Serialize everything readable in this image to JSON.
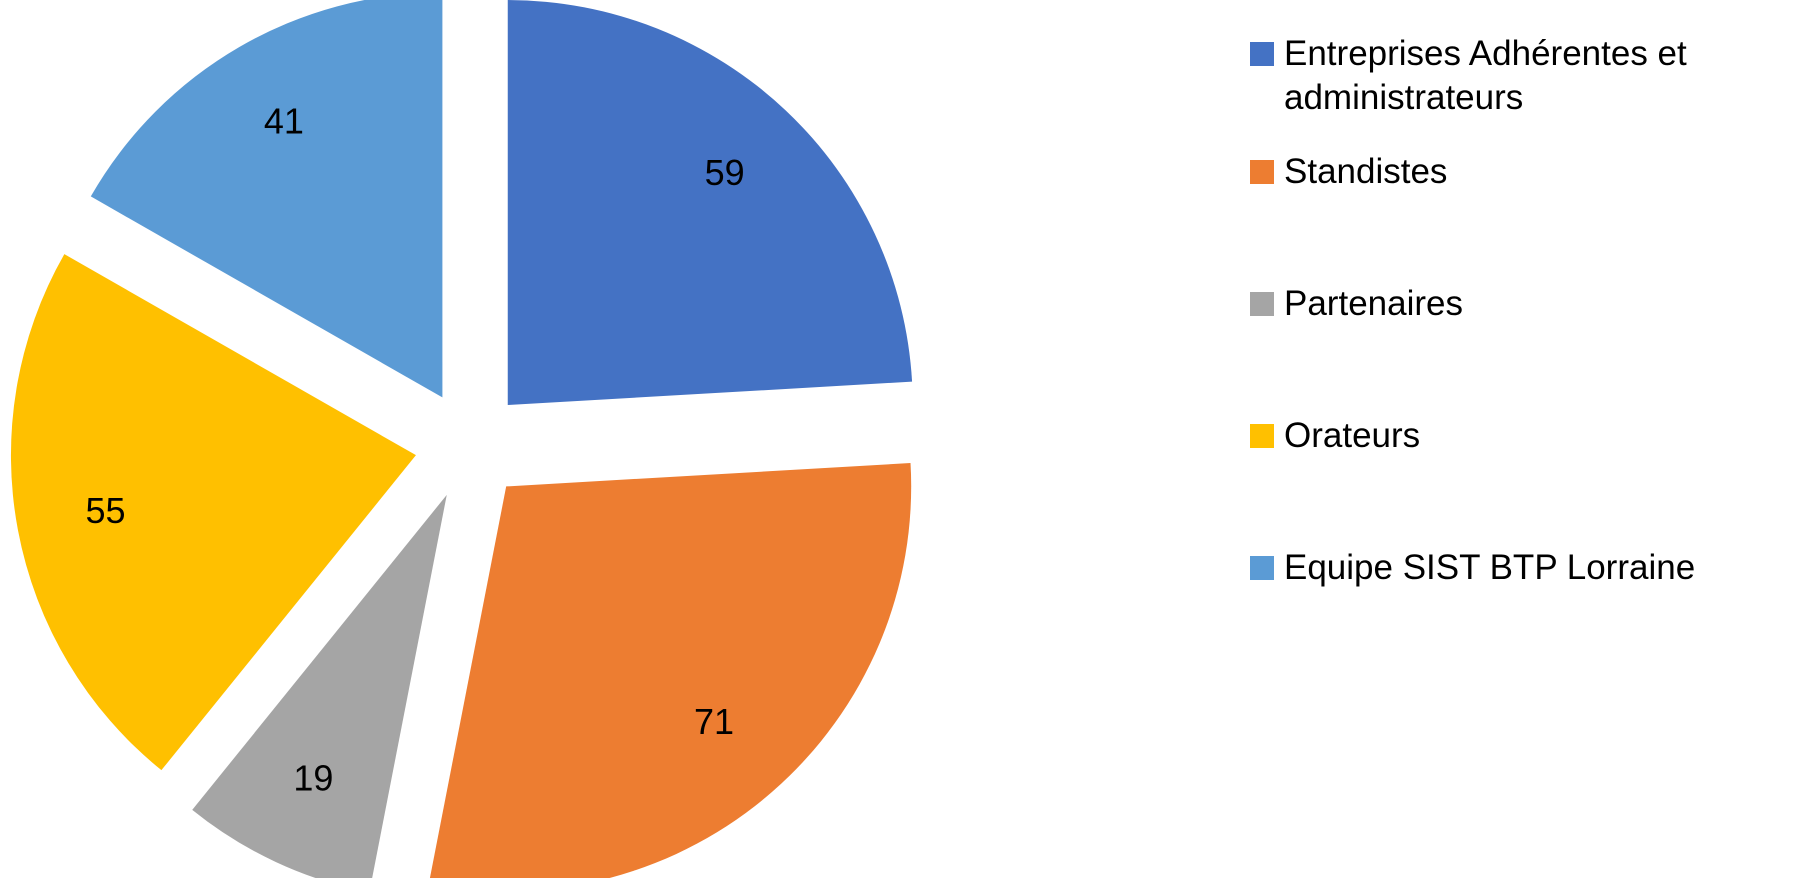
{
  "chart_data": {
    "type": "pie",
    "exploded": true,
    "categories": [
      "Entreprises Adhérentes et administrateurs",
      "Standistes",
      "Partenaires",
      "Orateurs",
      "Equipe SIST BTP Lorraine"
    ],
    "values": [
      59,
      71,
      19,
      55,
      41
    ],
    "colors": [
      "#4472c4",
      "#ed7d31",
      "#a5a5a5",
      "#ffc000",
      "#5b9bd5"
    ],
    "legend": "right"
  }
}
